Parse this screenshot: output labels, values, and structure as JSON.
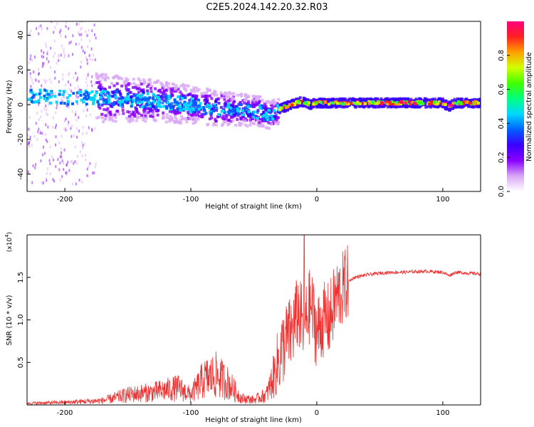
{
  "title": "C2E5.2024.142.20.32.R03",
  "chart_data": [
    {
      "type": "heatmap",
      "xlabel": "Height of straight line (km)",
      "ylabel": "Frequency (Hz)",
      "xlim": [
        -230,
        130
      ],
      "ylim": [
        -50,
        48
      ],
      "x_ticks": [
        -200,
        -100,
        0,
        100
      ],
      "x_tick_labels": [
        "-200",
        "-100",
        "0",
        "100"
      ],
      "y_ticks": [
        -40,
        -20,
        0,
        20,
        40
      ],
      "y_tick_labels": [
        "-40",
        "-20",
        "0",
        "20",
        "40"
      ],
      "colorbar": {
        "label": "Normalized spectral amplitude",
        "range": [
          0,
          1
        ],
        "ticks": [
          0.0,
          0.2,
          0.4,
          0.6,
          0.8
        ],
        "tick_labels": [
          "0.0",
          "0.2",
          "0.4",
          "0.6",
          "0.8"
        ],
        "colors": [
          "#ffffff",
          "#d9a7f5",
          "#8a00ff",
          "#3a00ff",
          "#0060ff",
          "#00d8ff",
          "#00ff80",
          "#40ff00",
          "#d0ff00",
          "#ffa000",
          "#ff2020",
          "#ff0080"
        ]
      },
      "ridge": {
        "x": [
          -230,
          -200,
          -175,
          -150,
          -125,
          -100,
          -80,
          -60,
          -45,
          -35,
          -28,
          -20,
          -12,
          -5,
          0,
          20,
          50,
          80,
          90,
          100,
          105,
          110,
          120,
          130
        ],
        "y": [
          5,
          4,
          4,
          3,
          2,
          0,
          -2,
          -3,
          -4,
          -6,
          -2,
          0,
          2,
          0,
          1,
          1,
          1,
          1,
          1,
          1,
          -1,
          1,
          1,
          1
        ]
      },
      "grid": false
    },
    {
      "type": "line",
      "xlabel": "Height of straight line (km)",
      "ylabel": "SNR (10 * v/v)",
      "y_multiplier_label": "(x10",
      "y_multiplier_exp": "4",
      "xlim": [
        -230,
        130
      ],
      "ylim": [
        0,
        2.0
      ],
      "x_ticks": [
        -200,
        -100,
        0,
        100
      ],
      "x_tick_labels": [
        "-200",
        "-100",
        "0",
        "100"
      ],
      "y_ticks": [
        0.5,
        1.0,
        1.5
      ],
      "y_tick_labels": [
        "0.5",
        "1.0",
        "1.5"
      ],
      "color": "#ee3333",
      "series": [
        {
          "x": [
            -230,
            -200,
            -170,
            -150,
            -130,
            -110,
            -100,
            -90,
            -80,
            -70,
            -60,
            -50,
            -40,
            -35,
            -30,
            -25,
            -20,
            -15,
            -10,
            -5,
            0,
            5,
            10,
            15,
            20,
            25,
            30,
            40,
            50,
            60,
            70,
            80,
            90,
            100,
            105,
            110,
            120,
            130
          ],
          "y": [
            0.02,
            0.03,
            0.05,
            0.12,
            0.15,
            0.2,
            0.12,
            0.3,
            0.35,
            0.25,
            0.08,
            0.06,
            0.12,
            0.3,
            0.55,
            0.75,
            0.85,
            1.1,
            0.9,
            1.2,
            0.85,
            1.0,
            1.0,
            1.25,
            1.35,
            1.45,
            1.5,
            1.53,
            1.55,
            1.56,
            1.56,
            1.57,
            1.57,
            1.56,
            1.52,
            1.56,
            1.55,
            1.54
          ]
        }
      ],
      "grid": false
    }
  ]
}
